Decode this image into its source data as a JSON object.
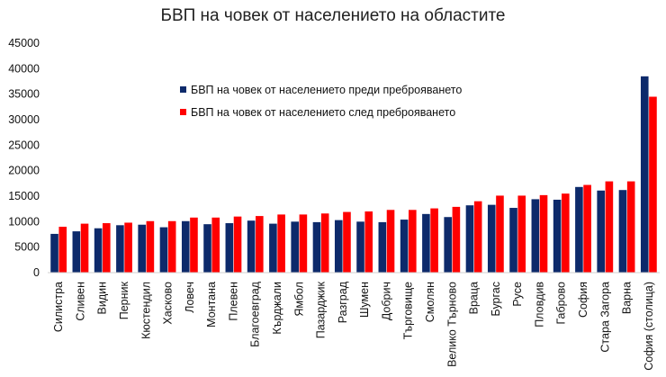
{
  "chart_data": {
    "type": "bar",
    "title": "БВП на човек от населението на областите",
    "xlabel": "",
    "ylabel": "",
    "ylim": [
      0,
      45000
    ],
    "yticks": [
      0,
      5000,
      10000,
      15000,
      20000,
      25000,
      30000,
      35000,
      40000,
      45000
    ],
    "grid": false,
    "legend_position": "upper-center",
    "categories": [
      "Силистра",
      "Сливен",
      "Видин",
      "Перник",
      "Кюстендил",
      "Хасково",
      "Ловеч",
      "Монтана",
      "Плевен",
      "Благоевград",
      "Кърджали",
      "Ямбол",
      "Пазарджик",
      "Разград",
      "Шумен",
      "Добрич",
      "Търговище",
      "Смолян",
      "Велико Търново",
      "Враца",
      "Бургас",
      "Русе",
      "Пловдив",
      "Габрово",
      "София",
      "Стара Загора",
      "Варна",
      "София (столица)"
    ],
    "series": [
      {
        "name": "БВП на човек от населението преди преброяването",
        "color": "#0d2a6b",
        "values": [
          7600,
          8100,
          8700,
          9300,
          9400,
          8900,
          10100,
          9500,
          9700,
          10200,
          9600,
          10000,
          9900,
          10300,
          10000,
          9900,
          10400,
          11500,
          10900,
          13200,
          13300,
          12700,
          14400,
          14300,
          16800,
          16100,
          16200,
          38500
        ]
      },
      {
        "name": "БВП на човек от населението след преброяването",
        "color": "#ff0000",
        "values": [
          9000,
          9600,
          9700,
          9800,
          10100,
          10100,
          10800,
          10800,
          11000,
          11100,
          11400,
          11400,
          11600,
          11900,
          12000,
          12300,
          12300,
          12600,
          12900,
          14000,
          15100,
          15100,
          15200,
          15500,
          17200,
          17900,
          17900,
          34500
        ]
      }
    ]
  }
}
